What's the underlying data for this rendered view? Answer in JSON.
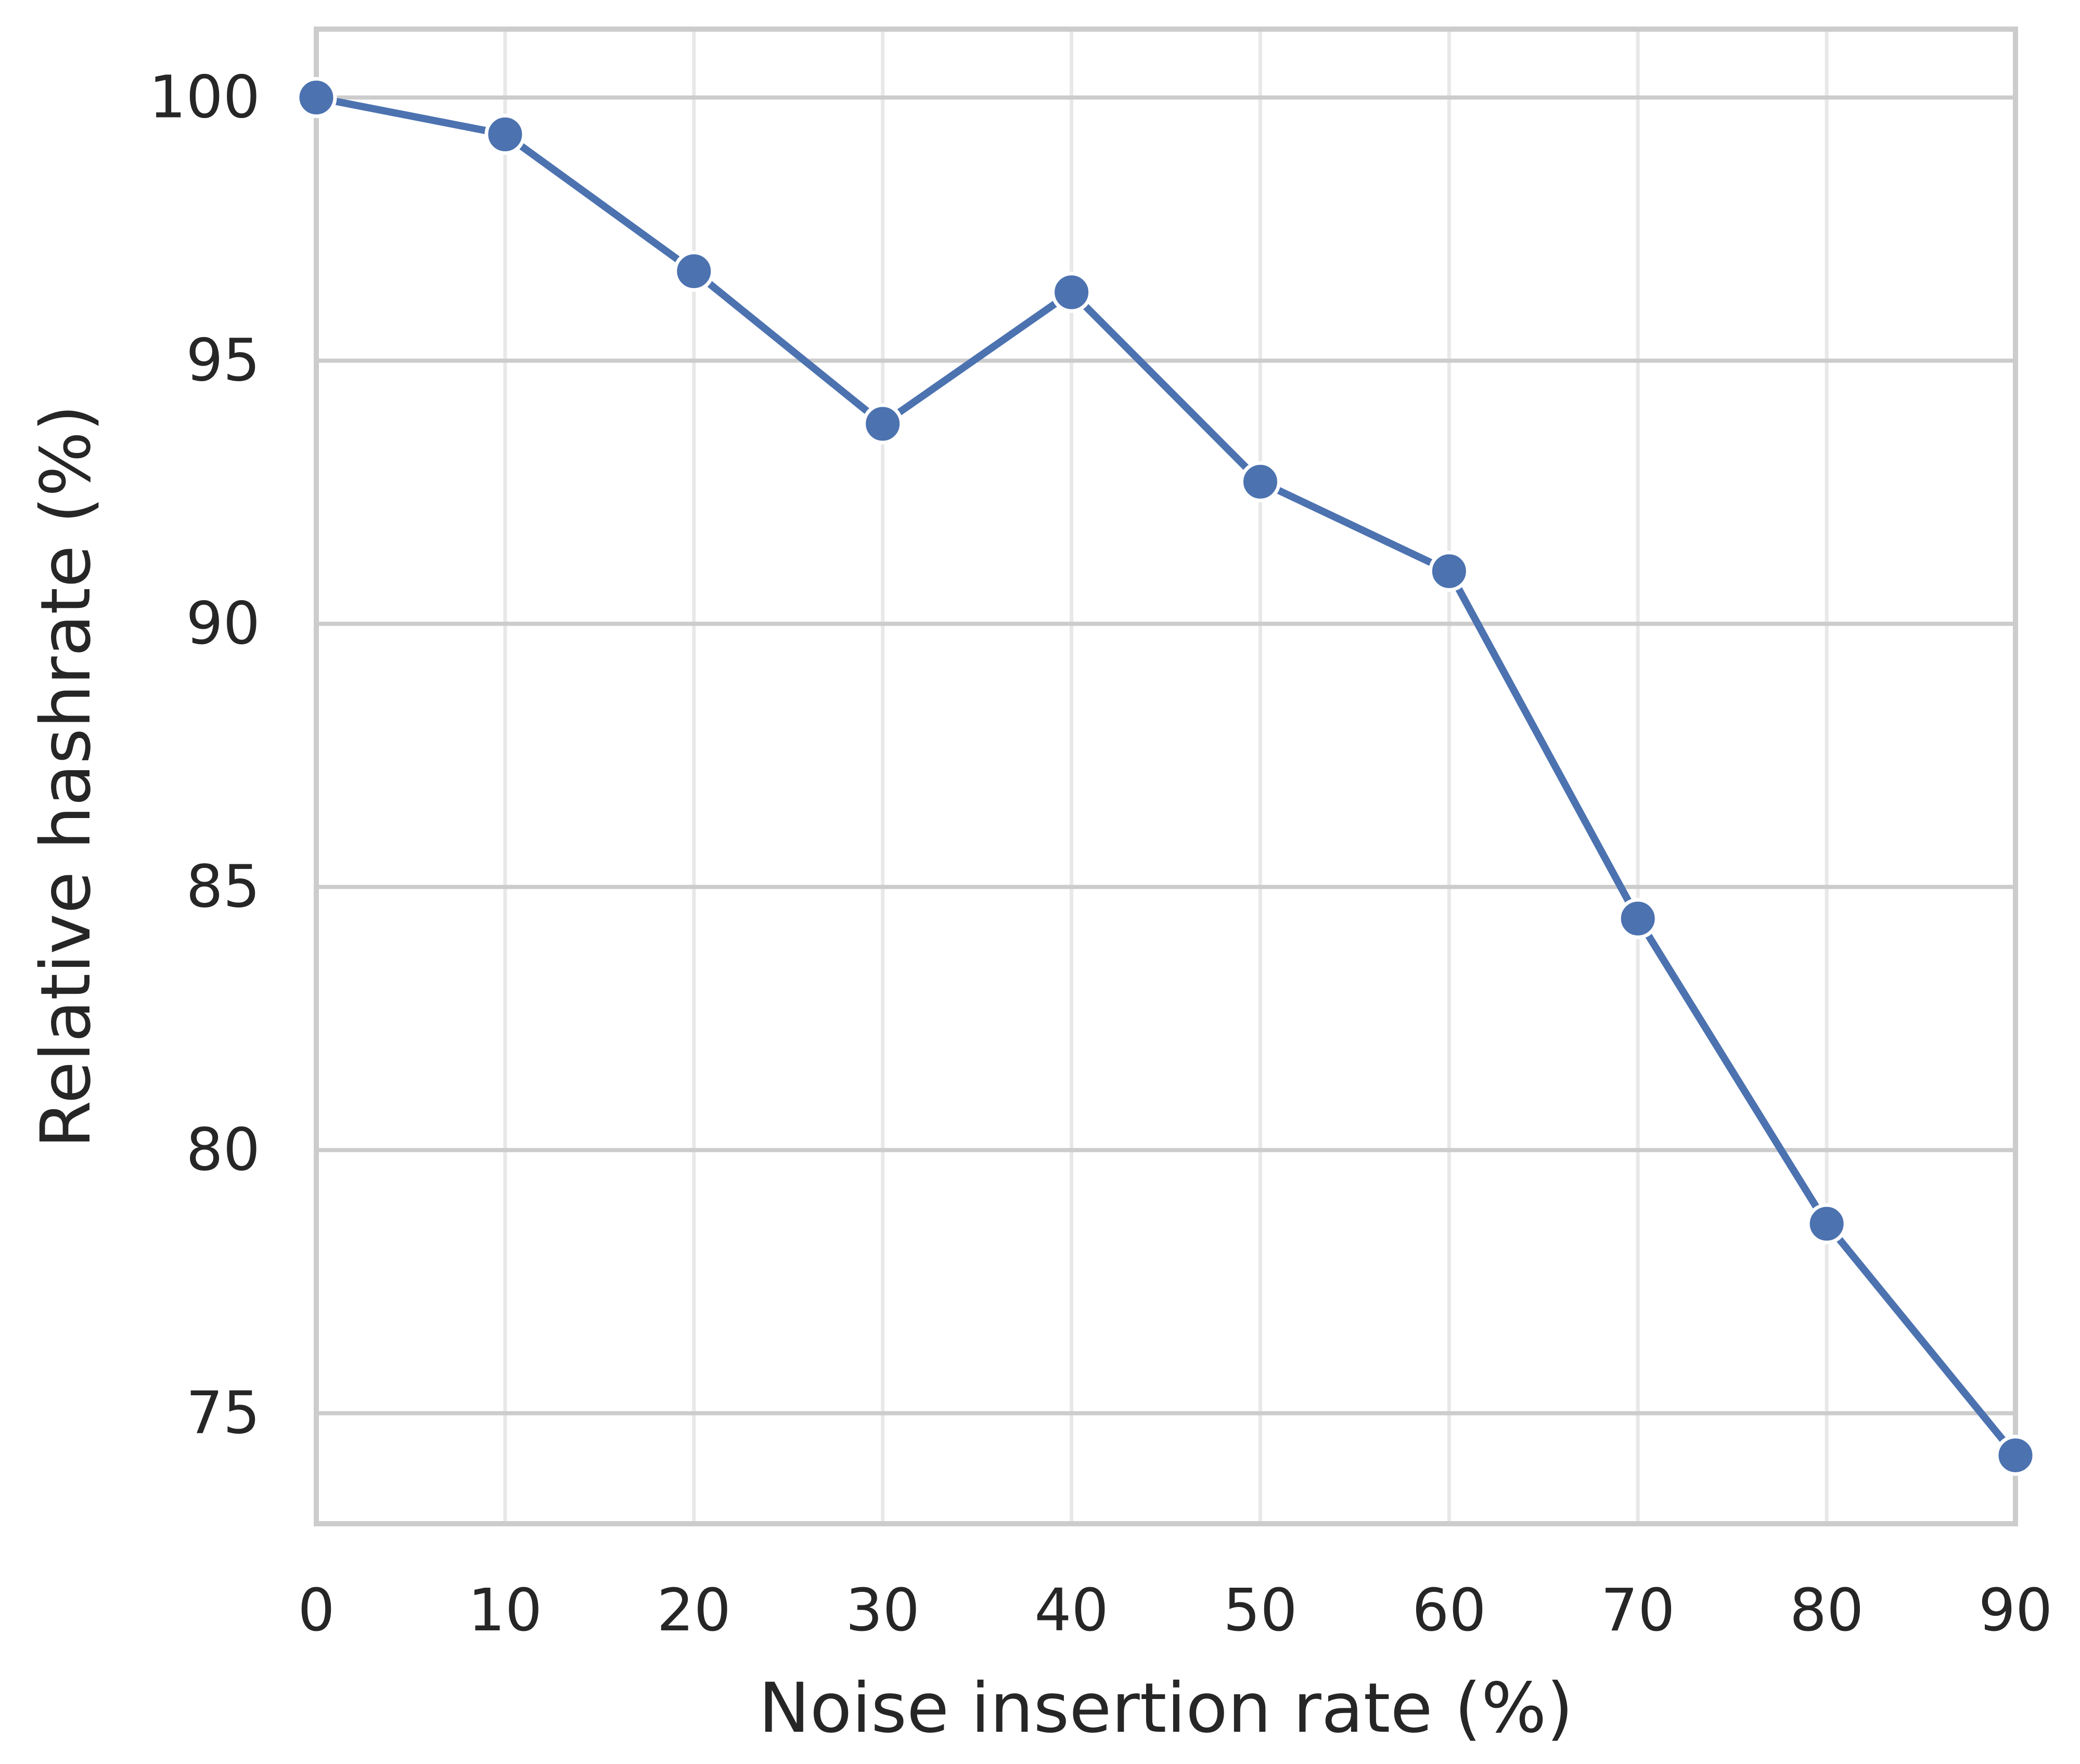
{
  "chart_data": {
    "type": "line",
    "xlabel": "Noise insertion rate (%)",
    "ylabel": "Relative hashrate (%)",
    "xlim": [
      0,
      90
    ],
    "ylim": [
      72.9,
      101.3
    ],
    "xticks": [
      0,
      10,
      20,
      30,
      40,
      50,
      60,
      70,
      80,
      90
    ],
    "yticks": [
      75,
      80,
      85,
      90,
      95,
      100
    ],
    "x_tick_labels": [
      "0",
      "10",
      "20",
      "30",
      "40",
      "50",
      "60",
      "70",
      "80",
      "90"
    ],
    "y_tick_labels": [
      "75",
      "80",
      "85",
      "90",
      "95",
      "100"
    ],
    "grid": true,
    "series": [
      {
        "x": [
          0,
          10,
          20,
          30,
          40,
          50,
          60,
          70,
          80,
          90
        ],
        "y": [
          100.0,
          99.3,
          96.7,
          93.8,
          96.3,
          92.7,
          91.0,
          84.4,
          78.6,
          74.2
        ],
        "color": "#4c72b0",
        "marker": "circle"
      }
    ]
  }
}
